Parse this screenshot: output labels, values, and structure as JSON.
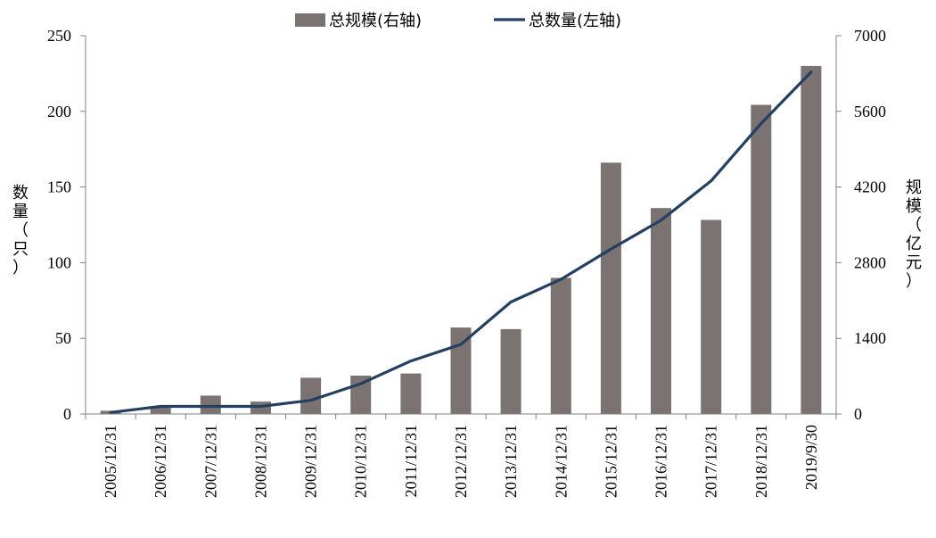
{
  "chart_data": {
    "type": "bar+line",
    "categories": [
      "2005/12/31",
      "2006/12/31",
      "2007/12/31",
      "2008/12/31",
      "2009/12/31",
      "2010/12/31",
      "2011/12/31",
      "2012/12/31",
      "2013/12/31",
      "2014/12/31",
      "2015/12/31",
      "2016/12/31",
      "2017/12/31",
      "2018/12/31",
      "2019/9/30"
    ],
    "series": [
      {
        "name": "总规模(右轴)",
        "type": "bar",
        "axis": "right",
        "color": "#7a7372",
        "values": [
          60,
          150,
          340,
          230,
          670,
          710,
          750,
          1600,
          1570,
          2520,
          4650,
          3810,
          3590,
          5720,
          6440
        ]
      },
      {
        "name": "总数量(左轴)",
        "type": "line",
        "axis": "left",
        "color": "#243f60",
        "values": [
          1,
          5,
          5,
          5,
          9,
          20,
          35,
          46,
          74,
          89,
          109,
          128,
          154,
          192,
          226
        ]
      }
    ],
    "ylabel_left": "数量（只）",
    "ylabel_right": "规模（亿元）",
    "ylim_left": [
      0,
      250
    ],
    "yticks_left": [
      "0",
      "50",
      "100",
      "150",
      "200",
      "250"
    ],
    "ylim_right": [
      0,
      7000
    ],
    "yticks_right": [
      "0",
      "1400",
      "2800",
      "4200",
      "5600",
      "7000"
    ],
    "legend_position": "top-center",
    "grid": false
  }
}
